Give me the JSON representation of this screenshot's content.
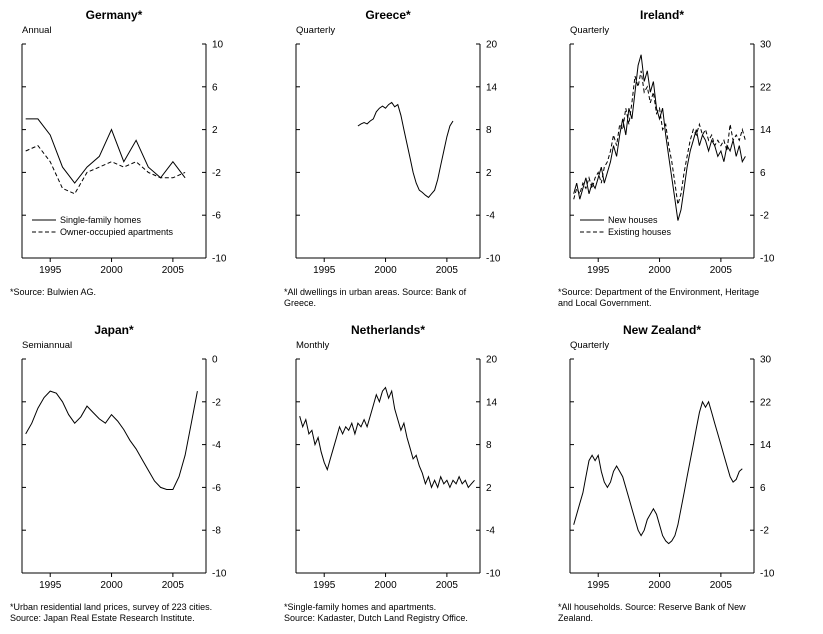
{
  "page": {
    "background": "#ffffff",
    "line_color": "#000000"
  },
  "chart_data": [
    {
      "type": "line",
      "title": "Germany*",
      "freq_label": "Annual",
      "footnote": "*Source: Bulwien AG.",
      "x_range": [
        1992.7,
        2007.7
      ],
      "x_ticks": [
        1995,
        2000,
        2005
      ],
      "ylim": [
        -10,
        10
      ],
      "y_ticks": [
        10,
        6,
        2,
        -2,
        -6,
        -10
      ],
      "legend": [
        {
          "label": "Single-family homes",
          "style": "solid"
        },
        {
          "label": "Owner-occupied apartments",
          "style": "dashed"
        }
      ],
      "series": [
        {
          "name": "Single-family homes",
          "style": "solid",
          "x_start": 1993,
          "x_step": 1,
          "values": [
            3.0,
            3.0,
            1.5,
            -1.5,
            -3.0,
            -1.5,
            -0.5,
            2.0,
            -1.0,
            1.0,
            -1.5,
            -2.5,
            -1.0,
            -2.5
          ]
        },
        {
          "name": "Owner-occupied apartments",
          "style": "dashed",
          "x_start": 1993,
          "x_step": 1,
          "values": [
            0.0,
            0.5,
            -1.0,
            -3.5,
            -4.0,
            -2.0,
            -1.5,
            -1.0,
            -1.5,
            -1.0,
            -2.0,
            -2.5,
            -2.5,
            -2.0
          ]
        }
      ]
    },
    {
      "type": "line",
      "title": "Greece*",
      "freq_label": "Quarterly",
      "footnote": "*All dwellings in urban areas.  Source: Bank of\nGreece.",
      "x_range": [
        1992.7,
        2007.7
      ],
      "x_ticks": [
        1995,
        2000,
        2005
      ],
      "ylim": [
        -10,
        20
      ],
      "y_ticks": [
        20,
        14,
        8,
        2,
        -4,
        -10
      ],
      "legend": null,
      "series": [
        {
          "name": "All dwellings",
          "style": "solid",
          "x_start": 1997.75,
          "x_step": 0.25,
          "values": [
            8.5,
            8.8,
            9.0,
            8.8,
            9.2,
            9.5,
            10.5,
            11.0,
            11.3,
            11.0,
            11.5,
            11.8,
            11.2,
            11.5,
            10.0,
            8.0,
            6.0,
            4.0,
            2.0,
            0.5,
            -0.5,
            -0.8,
            -1.2,
            -1.5,
            -1.0,
            -0.5,
            1.0,
            3.0,
            5.0,
            7.0,
            8.5,
            9.2
          ]
        }
      ]
    },
    {
      "type": "line",
      "title": "Ireland*",
      "freq_label": "Quarterly",
      "footnote": "*Source: Department of the Environment, Heritage\nand Local Government.",
      "x_range": [
        1992.7,
        2007.7
      ],
      "x_ticks": [
        1995,
        2000,
        2005
      ],
      "ylim": [
        -10,
        30
      ],
      "y_ticks": [
        30,
        22,
        14,
        6,
        -2,
        -10
      ],
      "legend": [
        {
          "label": "New houses",
          "style": "solid"
        },
        {
          "label": "Existing houses",
          "style": "dashed"
        }
      ],
      "series": [
        {
          "name": "New houses",
          "style": "solid",
          "x_start": 1993,
          "x_step": 0.25,
          "values": [
            2,
            4,
            1,
            3,
            5,
            2,
            4,
            3,
            5,
            7,
            4,
            6,
            8,
            11,
            9,
            13,
            16,
            13,
            18,
            16,
            21,
            26,
            28,
            23,
            25,
            21,
            23,
            18,
            16,
            18,
            13,
            9,
            5,
            1,
            -3,
            -1,
            3,
            7,
            10,
            12,
            14,
            11,
            13,
            12,
            10,
            12,
            11,
            9,
            10,
            8,
            11,
            10,
            12,
            9,
            11,
            8,
            9
          ]
        },
        {
          "name": "Existing houses",
          "style": "dashed",
          "x_start": 1993,
          "x_step": 0.25,
          "values": [
            1,
            3,
            2,
            4,
            3,
            5,
            3,
            5,
            6,
            4,
            7,
            8,
            10,
            13,
            11,
            15,
            14,
            18,
            15,
            19,
            24,
            22,
            25,
            21,
            22,
            19,
            21,
            17,
            18,
            14,
            15,
            11,
            8,
            4,
            0,
            2,
            6,
            9,
            12,
            14,
            13,
            15,
            13,
            14,
            12,
            13,
            11,
            12,
            11,
            12,
            10,
            15,
            12,
            13,
            12,
            14,
            12
          ]
        }
      ]
    },
    {
      "type": "line",
      "title": "Japan*",
      "freq_label": "Semiannual",
      "footnote": "*Urban residential land prices, survey of 223 cities.\nSource: Japan Real Estate Research Institute.",
      "x_range": [
        1992.7,
        2007.7
      ],
      "x_ticks": [
        1995,
        2000,
        2005
      ],
      "ylim": [
        -10,
        0
      ],
      "y_ticks": [
        0,
        -2,
        -4,
        -6,
        -8,
        -10
      ],
      "legend": null,
      "series": [
        {
          "name": "Urban residential land prices",
          "style": "solid",
          "x_start": 1993,
          "x_step": 0.5,
          "values": [
            -3.5,
            -3.0,
            -2.3,
            -1.8,
            -1.5,
            -1.6,
            -2.0,
            -2.6,
            -3.0,
            -2.7,
            -2.2,
            -2.5,
            -2.8,
            -3.0,
            -2.6,
            -2.9,
            -3.3,
            -3.8,
            -4.2,
            -4.7,
            -5.2,
            -5.7,
            -6.0,
            -6.1,
            -6.1,
            -5.5,
            -4.5,
            -3.0,
            -1.5
          ]
        }
      ]
    },
    {
      "type": "line",
      "title": "Netherlands*",
      "freq_label": "Monthly",
      "footnote": "*Single-family homes and apartments.\nSource: Kadaster, Dutch Land Registry Office.",
      "x_range": [
        1992.7,
        2007.7
      ],
      "x_ticks": [
        1995,
        2000,
        2005
      ],
      "ylim": [
        -10,
        20
      ],
      "y_ticks": [
        20,
        14,
        8,
        2,
        -4,
        -10
      ],
      "legend": null,
      "series": [
        {
          "name": "Single-family homes and apartments",
          "style": "solid",
          "x_start": 1993,
          "x_step": 0.25,
          "values": [
            12,
            10.5,
            11.5,
            9.5,
            10,
            8,
            9,
            7,
            5.5,
            4.5,
            6,
            7.5,
            9,
            10.5,
            9.5,
            10.5,
            10,
            11,
            9.5,
            11,
            10.5,
            11.5,
            10.5,
            12,
            13.5,
            15,
            14,
            15.5,
            16,
            14.5,
            15.5,
            13,
            11.5,
            10,
            11,
            9,
            7.5,
            6,
            6.5,
            5,
            4,
            2.5,
            3.5,
            2,
            3,
            2,
            3.5,
            2.5,
            3,
            2,
            3,
            2.5,
            3.5,
            2.5,
            3,
            2,
            2.5,
            3
          ]
        }
      ]
    },
    {
      "type": "line",
      "title": "New Zealand*",
      "freq_label": "Quarterly",
      "footnote": "*All households.  Source: Reserve Bank of New\nZealand.",
      "x_range": [
        1992.7,
        2007.7
      ],
      "x_ticks": [
        1995,
        2000,
        2005
      ],
      "ylim": [
        -10,
        30
      ],
      "y_ticks": [
        30,
        22,
        14,
        6,
        -2,
        -10
      ],
      "legend": null,
      "series": [
        {
          "name": "All households",
          "style": "solid",
          "x_start": 1993,
          "x_step": 0.25,
          "values": [
            -1,
            1,
            3,
            5,
            8,
            11,
            12,
            11,
            12,
            9,
            7,
            6,
            7,
            9,
            10,
            9,
            8,
            6,
            4,
            2,
            0,
            -2,
            -3,
            -2,
            0,
            1,
            2,
            1,
            -1,
            -3,
            -4,
            -4.5,
            -4,
            -3,
            -1,
            2,
            5,
            8,
            11,
            14,
            17,
            20,
            22,
            21,
            22,
            20,
            18,
            16,
            14,
            12,
            10,
            8,
            7,
            7.5,
            9,
            9.5
          ]
        }
      ]
    }
  ]
}
